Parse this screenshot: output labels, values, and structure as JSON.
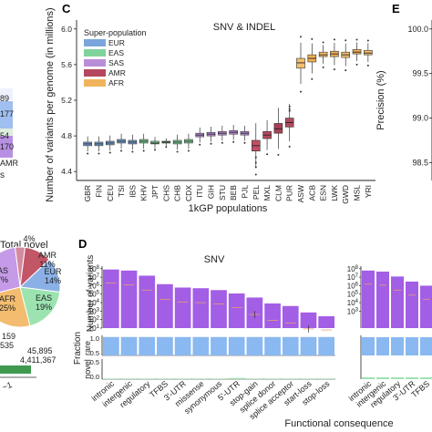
{
  "panel_letters": {
    "c": "C",
    "d": "D",
    "e": "E"
  },
  "left_fragments": {
    "values": [
      "89",
      "177",
      "54",
      "170"
    ],
    "amr_label": "AMR",
    "s_label": "s",
    "total_novel_title": "Total novel",
    "counts": [
      "159",
      "535",
      "45,895",
      "4,411,367"
    ],
    "bottom_label": "~1"
  },
  "chart_data": [
    {
      "id": "panel-c",
      "type": "box",
      "title": "SNV & INDEL",
      "xlabel": "1kGP populations",
      "ylabel": "Number of variants per genome (in millions)",
      "ylim": [
        4.3,
        6.1
      ],
      "yticks": [
        4.4,
        4.8,
        5.2,
        5.6,
        6.0
      ],
      "grid": false,
      "legend": {
        "title": "Super-population",
        "placement": "top-left",
        "entries": [
          {
            "name": "EUR",
            "color": "#7aa6db"
          },
          {
            "name": "EAS",
            "color": "#7fd39a"
          },
          {
            "name": "SAS",
            "color": "#b98ed9"
          },
          {
            "name": "AMR",
            "color": "#b5485e"
          },
          {
            "name": "AFR",
            "color": "#f0b55c"
          }
        ]
      },
      "categories": [
        "GBR",
        "FIN",
        "CEU",
        "TSI",
        "IBS",
        "KHV",
        "JPT",
        "CHS",
        "CHB",
        "CDX",
        "ITU",
        "GIH",
        "STU",
        "BEB",
        "PJL",
        "PEL",
        "MXL",
        "CLM",
        "PUR",
        "ASW",
        "ACB",
        "ESN",
        "LWK",
        "GWD",
        "MSL",
        "YRI"
      ],
      "groups": [
        "EUR",
        "EUR",
        "EUR",
        "EUR",
        "EUR",
        "EAS",
        "EAS",
        "EAS",
        "EAS",
        "EAS",
        "SAS",
        "SAS",
        "SAS",
        "SAS",
        "SAS",
        "AMR",
        "AMR",
        "AMR",
        "AMR",
        "AFR",
        "AFR",
        "AFR",
        "AFR",
        "AFR",
        "AFR",
        "AFR"
      ],
      "medians": [
        4.71,
        4.71,
        4.72,
        4.74,
        4.73,
        4.74,
        4.72,
        4.73,
        4.73,
        4.74,
        4.81,
        4.82,
        4.83,
        4.84,
        4.83,
        4.69,
        4.81,
        4.88,
        4.95,
        5.62,
        5.67,
        5.71,
        5.72,
        5.71,
        5.74,
        5.73
      ],
      "q1": [
        4.69,
        4.69,
        4.7,
        4.72,
        4.71,
        4.72,
        4.71,
        4.72,
        4.71,
        4.72,
        4.79,
        4.8,
        4.81,
        4.82,
        4.81,
        4.63,
        4.77,
        4.83,
        4.9,
        5.56,
        5.63,
        5.69,
        5.69,
        5.68,
        5.72,
        5.71
      ],
      "q3": [
        4.73,
        4.73,
        4.74,
        4.76,
        4.75,
        4.76,
        4.74,
        4.74,
        4.75,
        4.76,
        4.83,
        4.84,
        4.85,
        4.86,
        4.85,
        4.75,
        4.85,
        4.94,
        5.0,
        5.67,
        5.71,
        5.74,
        5.75,
        5.74,
        5.77,
        5.76
      ]
    },
    {
      "id": "panel-d-top",
      "type": "bar",
      "title": "SNV",
      "ylabel": "Number of variants",
      "yscale": "log",
      "yticks": [
        "10^8",
        "10^7",
        "10^6",
        "10^5",
        "10^4",
        "10^3",
        "10^2",
        "10^1"
      ],
      "color": "#a35ee6",
      "categories": [
        "intronic",
        "intergenic",
        "regulatory",
        "TFBS",
        "3'-UTR",
        "missense",
        "synonymous",
        "5'-UTR",
        "stop-gain",
        "splice donor",
        "splice acceptor",
        "start-loss",
        "stop-loss"
      ],
      "values": [
        80000000,
        60000000,
        15000000,
        1500000,
        600000,
        500000,
        300000,
        120000,
        40000,
        8000,
        4000,
        700,
        250
      ],
      "novel_means": [
        2000000,
        1200000,
        300000,
        25000,
        12000,
        10000,
        7000,
        2500,
        400,
        80,
        40,
        8,
        6
      ]
    },
    {
      "id": "panel-d-fraction",
      "type": "bar",
      "ylabel": "Fraction",
      "rows": [
        {
          "name": "rare",
          "color": "#8ab8f0",
          "yticks": [
            "0.5",
            "1.0"
          ],
          "values": [
            0.92,
            0.92,
            0.92,
            0.92,
            0.92,
            0.92,
            0.92,
            0.92,
            0.92,
            0.92,
            0.92,
            0.92,
            0.92
          ]
        },
        {
          "name": "novel",
          "color": "#9fe3b0",
          "yticks": [
            "0.0",
            "0.5"
          ],
          "values": [
            0.03,
            0.03,
            0.03,
            0.03,
            0.03,
            0.03,
            0.03,
            0.06,
            0.03,
            0.03,
            0.03,
            0.03,
            0.03
          ]
        }
      ]
    },
    {
      "id": "panel-d-right",
      "type": "bar",
      "yscale": "log",
      "yticks": [
        "10^8",
        "10^7",
        "10^6",
        "10^5",
        "10^4",
        "10^3"
      ],
      "color": "#a35ee6",
      "categories": [
        "intronic",
        "intergenic",
        "regulatory",
        "3'-UTR",
        "TFBS"
      ],
      "values": [
        60000000,
        45000000,
        12000000,
        3000000,
        1000000
      ]
    },
    {
      "id": "panel-d-xlabel",
      "type": "bar",
      "xlabel": "Functional consequence"
    },
    {
      "id": "panel-e",
      "type": "scatter",
      "ylabel": "Precision (%)",
      "yticks": [
        98.5,
        99.0,
        99.5,
        100.0
      ],
      "ylim": [
        98.3,
        100.1
      ]
    },
    {
      "id": "pie",
      "type": "pie",
      "slices": [
        {
          "label": "AMR",
          "value_label": "11%",
          "value": 11,
          "color": "#c25566"
        },
        {
          "label": "EUR",
          "value_label": "14%",
          "value": 14,
          "color": "#8ab0e6"
        },
        {
          "label": "EAS",
          "value_label": "19%",
          "value": 19,
          "color": "#9ce3b0"
        },
        {
          "label": "AFR",
          "value_label": "25%",
          "value": 25,
          "color": "#f3bc6e"
        },
        {
          "label": "SAS",
          "value_label": "27%",
          "value": 27,
          "color": "#c59ae6"
        },
        {
          "label": "",
          "value_label": "4%",
          "value": 4,
          "color": "#d48aa0"
        }
      ]
    }
  ]
}
